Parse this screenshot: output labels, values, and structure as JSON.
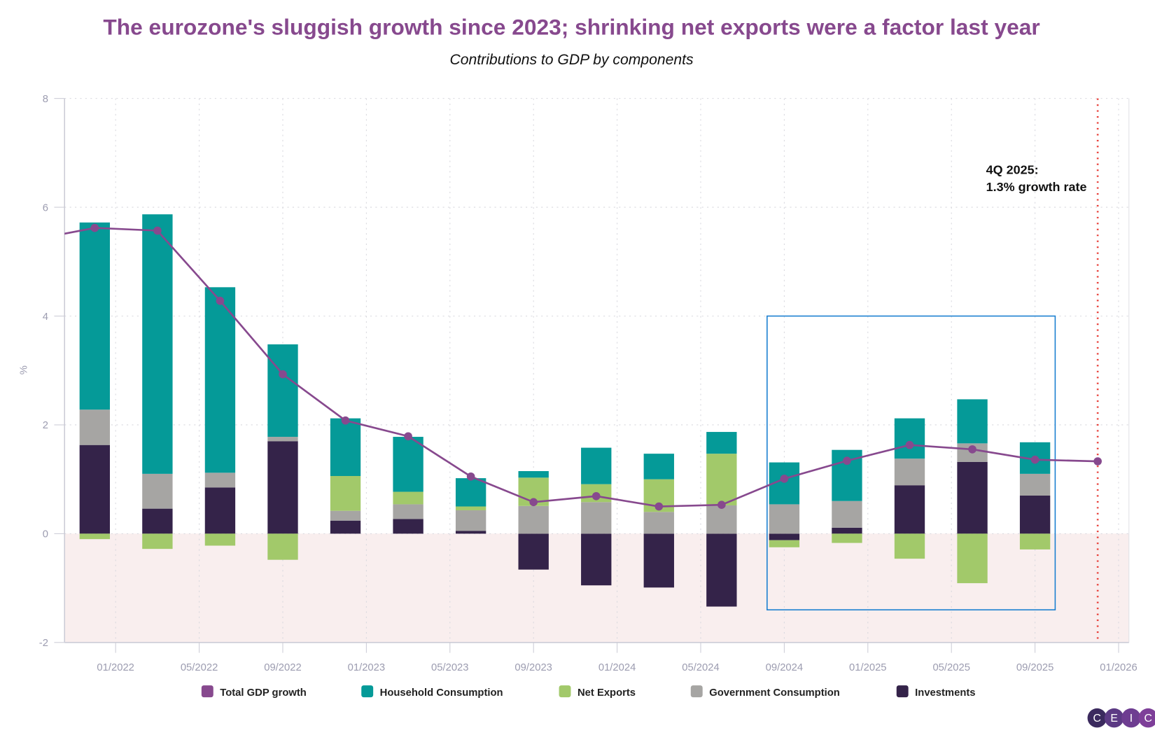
{
  "chart_data": {
    "type": "bar",
    "title": "The eurozone's sluggish growth since 2023; shrinking net exports were a factor last year",
    "subtitle": "Contributions to GDP by components",
    "ylabel": "%",
    "ylim": [
      -2,
      8
    ],
    "yticks": [
      -2,
      0,
      2,
      4,
      6,
      8
    ],
    "xlim": [
      "2021-10",
      "2026-01"
    ],
    "xticks": [
      "2022-01",
      "2022-05",
      "2022-09",
      "2023-01",
      "2023-05",
      "2023-09",
      "2024-01",
      "2024-05",
      "2024-09",
      "2025-01",
      "2025-05",
      "2025-09",
      "2026-01"
    ],
    "xtick_labels": [
      "01/2022",
      "05/2022",
      "09/2022",
      "01/2023",
      "05/2023",
      "09/2023",
      "01/2024",
      "05/2024",
      "09/2024",
      "01/2025",
      "05/2025",
      "09/2025",
      "01/2026"
    ],
    "grid": true,
    "legend_placement": "bottom",
    "stacked": true,
    "categories": [
      "2021-12",
      "2022-03",
      "2022-06",
      "2022-09",
      "2022-12",
      "2023-03",
      "2023-06",
      "2023-09",
      "2023-12",
      "2024-03",
      "2024-06",
      "2024-09",
      "2024-12",
      "2025-03",
      "2025-06",
      "2025-09"
    ],
    "series": [
      {
        "name": "Investments",
        "color": "#342349",
        "values": [
          1.63,
          0.46,
          0.85,
          1.7,
          0.24,
          0.27,
          0.05,
          -0.66,
          -0.95,
          -0.99,
          -1.34,
          -0.12,
          0.11,
          0.89,
          1.32,
          0.7
        ]
      },
      {
        "name": "Government Consumption",
        "color": "#a6a5a3",
        "values": [
          0.65,
          0.64,
          0.27,
          0.08,
          0.18,
          0.27,
          0.38,
          0.51,
          0.58,
          0.4,
          0.52,
          0.54,
          0.49,
          0.49,
          0.34,
          0.4
        ]
      },
      {
        "name": "Net Exports",
        "color": "#a2c96a",
        "values": [
          -0.1,
          -0.28,
          -0.22,
          -0.48,
          0.64,
          0.23,
          0.07,
          0.52,
          0.33,
          0.6,
          0.95,
          -0.13,
          -0.17,
          -0.46,
          -0.91,
          -0.29
        ]
      },
      {
        "name": "Household Consumption",
        "color": "#059a98",
        "values": [
          3.44,
          4.77,
          3.41,
          1.7,
          1.06,
          1.01,
          0.52,
          0.12,
          0.67,
          0.47,
          0.4,
          0.77,
          0.94,
          0.74,
          0.81,
          0.58
        ]
      }
    ],
    "line": {
      "name": "Total GDP growth",
      "color": "#87498e",
      "x": [
        "2021-09",
        "2021-12",
        "2022-03",
        "2022-06",
        "2022-09",
        "2022-12",
        "2023-03",
        "2023-06",
        "2023-09",
        "2023-12",
        "2024-03",
        "2024-06",
        "2024-09",
        "2024-12",
        "2025-03",
        "2025-06",
        "2025-09",
        "2025-12"
      ],
      "values": [
        5.4,
        5.62,
        5.57,
        4.28,
        2.93,
        2.08,
        1.79,
        1.05,
        0.58,
        0.69,
        0.5,
        0.53,
        1.01,
        1.34,
        1.63,
        1.55,
        1.36,
        1.33
      ]
    },
    "legend": [
      "Total GDP growth",
      "Household Consumption",
      "Net Exports",
      "Government Consumption",
      "Investments"
    ],
    "annotation": {
      "line1": "4Q 2025:",
      "line2": "1.3% growth rate",
      "at": "2025-12",
      "marker_color": "#e8403a"
    },
    "highlight_box": {
      "x_from": "2024-08",
      "x_to": "2025-10",
      "y_from": -1.4,
      "y_to": 4,
      "color": "#1a7fd0"
    },
    "negative_region_color": "#f9eeee"
  },
  "logo": {
    "letters": [
      "C",
      "E",
      "I",
      "C"
    ],
    "colors": [
      "#3b2a5e",
      "#5c3a84",
      "#6e3d91",
      "#7e3f99"
    ]
  }
}
